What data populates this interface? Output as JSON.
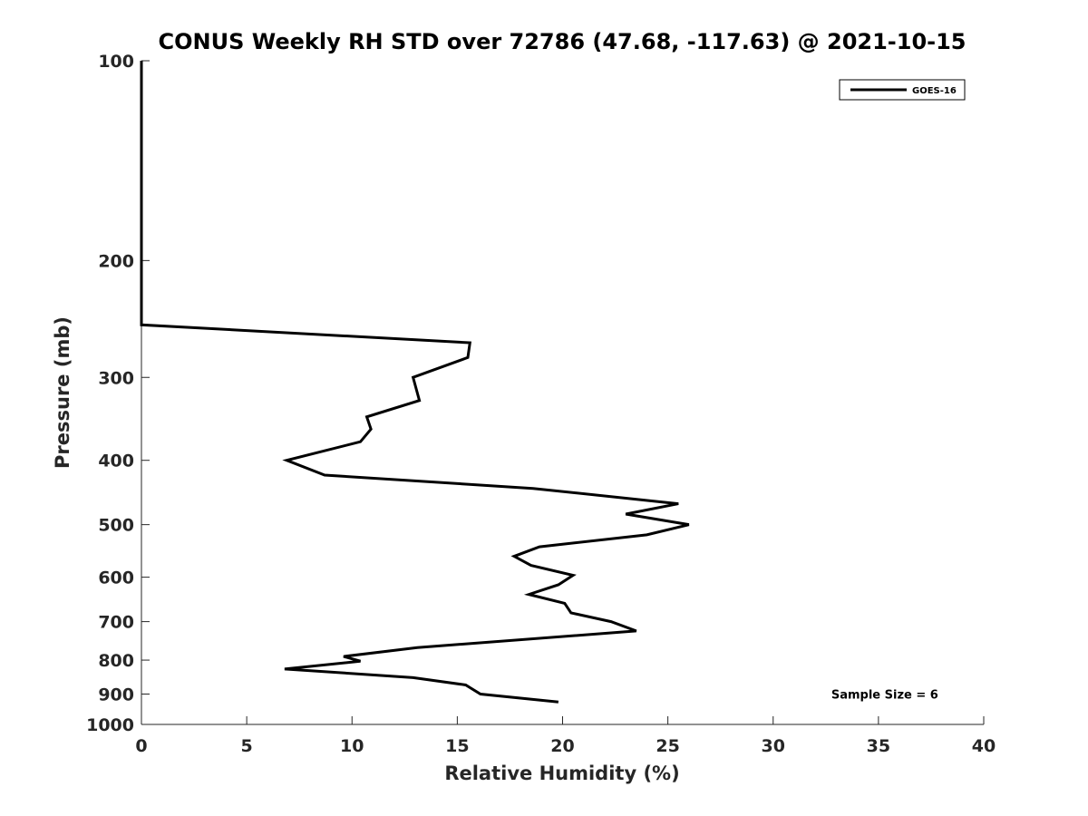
{
  "chart_data": {
    "type": "line",
    "title": "CONUS Weekly RH STD over 72786 (47.68, -117.63) @ 2021-10-15",
    "xlabel": "Relative Humidity (%)",
    "ylabel": "Pressure (mb)",
    "xlim": [
      0,
      40
    ],
    "ylim": [
      1000,
      100
    ],
    "yscale": "log",
    "yreversed": true,
    "grid": false,
    "legend_position": "top-right",
    "x_ticks": [
      "0",
      "5",
      "10",
      "15",
      "20",
      "25",
      "30",
      "35",
      "40"
    ],
    "y_ticks": [
      "100",
      "200",
      "300",
      "400",
      "500",
      "600",
      "700",
      "800",
      "900",
      "1000"
    ],
    "series": [
      {
        "name": "GOES-16",
        "color": "#000000",
        "points": [
          {
            "x": 0,
            "p": 100
          },
          {
            "x": 0,
            "p": 150
          },
          {
            "x": 0,
            "p": 200
          },
          {
            "x": 0,
            "p": 250
          },
          {
            "x": 15.6,
            "p": 266
          },
          {
            "x": 15.5,
            "p": 280
          },
          {
            "x": 12.9,
            "p": 300
          },
          {
            "x": 13.2,
            "p": 325
          },
          {
            "x": 10.7,
            "p": 344
          },
          {
            "x": 10.9,
            "p": 359
          },
          {
            "x": 10.4,
            "p": 375
          },
          {
            "x": 6.9,
            "p": 400
          },
          {
            "x": 8.7,
            "p": 421
          },
          {
            "x": 18.6,
            "p": 441
          },
          {
            "x": 25.5,
            "p": 465
          },
          {
            "x": 23.0,
            "p": 482
          },
          {
            "x": 26.0,
            "p": 500
          },
          {
            "x": 24.0,
            "p": 518
          },
          {
            "x": 18.9,
            "p": 540
          },
          {
            "x": 17.7,
            "p": 558
          },
          {
            "x": 18.5,
            "p": 576
          },
          {
            "x": 20.5,
            "p": 596
          },
          {
            "x": 19.8,
            "p": 616
          },
          {
            "x": 18.4,
            "p": 637
          },
          {
            "x": 20.1,
            "p": 657
          },
          {
            "x": 20.4,
            "p": 679
          },
          {
            "x": 22.3,
            "p": 700
          },
          {
            "x": 23.5,
            "p": 723
          },
          {
            "x": 13.1,
            "p": 766
          },
          {
            "x": 9.6,
            "p": 790
          },
          {
            "x": 10.4,
            "p": 803
          },
          {
            "x": 6.8,
            "p": 825
          },
          {
            "x": 12.9,
            "p": 850
          },
          {
            "x": 15.4,
            "p": 872
          },
          {
            "x": 15.6,
            "p": 880
          },
          {
            "x": 16.1,
            "p": 900
          },
          {
            "x": 19.8,
            "p": 925
          }
        ]
      }
    ],
    "annotations": [
      {
        "text": "Sample Size = 6",
        "x": 35.3,
        "p": 900
      }
    ]
  }
}
